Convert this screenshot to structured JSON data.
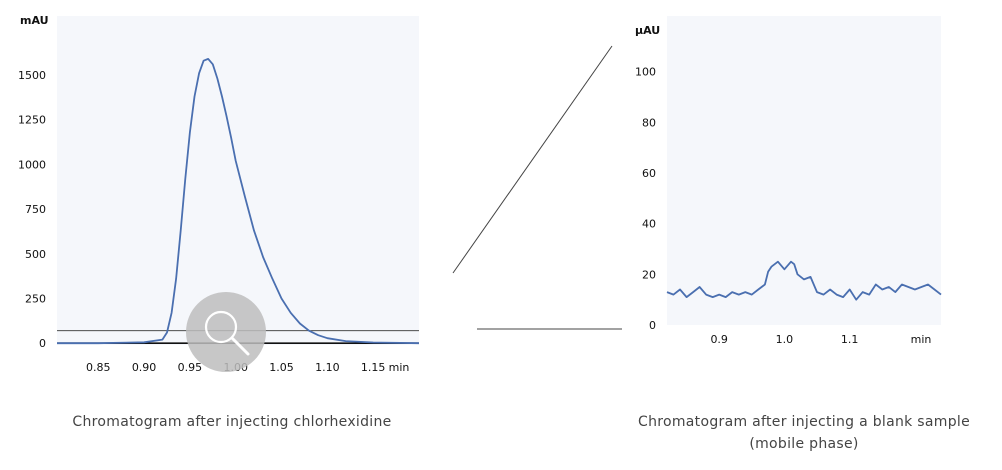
{
  "colors": {
    "plot_bg": "#f5f7fb",
    "trace": "#4a6fb0",
    "axis": "#222222",
    "connector": "#444444",
    "magnifier": "#bdbdbd"
  },
  "icons": {
    "zoom": "magnifier-icon"
  },
  "captions": {
    "left": "Chromatogram after injecting chlorhexidine",
    "right_line1": "Chromatogram after injecting a blank sample",
    "right_line2": "(mobile phase)"
  },
  "chart_data": [
    {
      "type": "line",
      "unit_label": "mAU",
      "x_unit_label": "min",
      "xlim": [
        0.805,
        1.2
      ],
      "ylim": [
        -10,
        1830
      ],
      "xticks": [
        0.85,
        0.9,
        0.95,
        1.0,
        1.05,
        1.1,
        1.15
      ],
      "xtick_labels": [
        "0.85",
        "0.90",
        "0.95",
        "1.00",
        "1.05",
        "1.10",
        "1.15"
      ],
      "yticks": [
        0,
        250,
        500,
        750,
        1000,
        1250,
        1500
      ],
      "ytick_labels": [
        "0",
        "250",
        "500",
        "750",
        "1000",
        "1250",
        "1500"
      ],
      "zoom_band": [
        0,
        70
      ],
      "series": [
        {
          "x": [
            0.805,
            0.85,
            0.9,
            0.92,
            0.925,
            0.93,
            0.935,
            0.94,
            0.945,
            0.95,
            0.955,
            0.96,
            0.965,
            0.97,
            0.975,
            0.98,
            0.985,
            0.99,
            0.995,
            1.0,
            1.01,
            1.02,
            1.03,
            1.04,
            1.05,
            1.06,
            1.07,
            1.08,
            1.09,
            1.1,
            1.12,
            1.15,
            1.2
          ],
          "y": [
            0,
            0,
            5,
            20,
            60,
            170,
            360,
            630,
            920,
            1180,
            1380,
            1510,
            1580,
            1590,
            1560,
            1480,
            1380,
            1270,
            1150,
            1020,
            820,
            630,
            480,
            360,
            250,
            170,
            110,
            70,
            45,
            28,
            12,
            4,
            0
          ]
        }
      ]
    },
    {
      "type": "line",
      "unit_label": "µAU",
      "x_unit_label": "min",
      "xlim": [
        0.82,
        1.24
      ],
      "ylim": [
        0,
        122
      ],
      "xticks": [
        0.9,
        1.0,
        1.1
      ],
      "xtick_labels": [
        "0.9",
        "1.0",
        "1.1"
      ],
      "yticks": [
        0,
        20,
        40,
        60,
        80,
        100
      ],
      "ytick_labels": [
        "0",
        "20",
        "40",
        "60",
        "80",
        "100"
      ],
      "series": [
        {
          "x": [
            0.82,
            0.83,
            0.84,
            0.85,
            0.86,
            0.87,
            0.88,
            0.89,
            0.9,
            0.91,
            0.92,
            0.93,
            0.94,
            0.95,
            0.96,
            0.97,
            0.975,
            0.98,
            0.99,
            1.0,
            1.01,
            1.015,
            1.02,
            1.03,
            1.04,
            1.05,
            1.06,
            1.07,
            1.08,
            1.09,
            1.1,
            1.11,
            1.12,
            1.13,
            1.14,
            1.15,
            1.16,
            1.17,
            1.18,
            1.19,
            1.2,
            1.21,
            1.22,
            1.23,
            1.24
          ],
          "y": [
            13,
            12,
            14,
            11,
            13,
            15,
            12,
            11,
            12,
            11,
            13,
            12,
            13,
            12,
            14,
            16,
            21,
            23,
            25,
            22,
            25,
            24,
            20,
            18,
            19,
            13,
            12,
            14,
            12,
            11,
            14,
            10,
            13,
            12,
            16,
            14,
            15,
            13,
            16,
            15,
            14,
            15,
            16,
            14,
            12
          ]
        }
      ]
    }
  ]
}
